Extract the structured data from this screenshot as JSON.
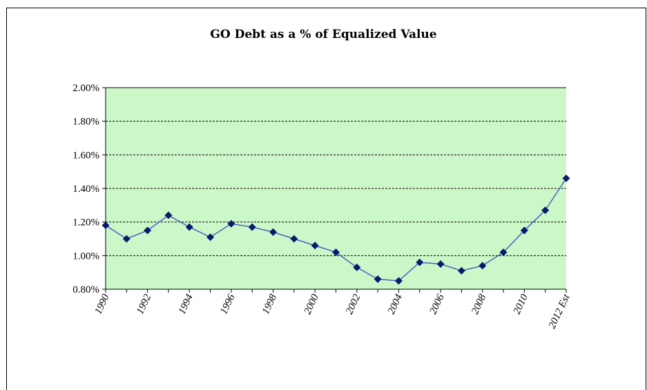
{
  "chart_data": {
    "type": "line",
    "title": "GO Debt as a % of Equalized Value",
    "xlabel": "",
    "ylabel": "",
    "categories": [
      "1990",
      "1991",
      "1992",
      "1993",
      "1994",
      "1995",
      "1996",
      "1997",
      "1998",
      "1999",
      "2000",
      "2001",
      "2002",
      "2003",
      "2004",
      "2005",
      "2006",
      "2007",
      "2008",
      "2009",
      "2010",
      "2011",
      "2012 Est"
    ],
    "x_tick_labels": [
      "1990",
      "1992",
      "1994",
      "1996",
      "1998",
      "2000",
      "2002",
      "2004",
      "2006",
      "2008",
      "2010",
      "2012 Est"
    ],
    "values": [
      1.18,
      1.1,
      1.15,
      1.24,
      1.17,
      1.11,
      1.19,
      1.17,
      1.14,
      1.1,
      1.06,
      1.02,
      0.93,
      0.86,
      0.85,
      0.96,
      0.95,
      0.91,
      0.94,
      1.02,
      1.15,
      1.27,
      1.46
    ],
    "ylim": [
      0.8,
      2.0
    ],
    "y_ticks": [
      "0.80%",
      "1.00%",
      "1.20%",
      "1.40%",
      "1.60%",
      "1.80%",
      "2.00%"
    ],
    "y_tick_values": [
      0.8,
      1.0,
      1.2,
      1.4,
      1.6,
      1.8,
      2.0
    ],
    "grid": true,
    "legend": "none",
    "colors": {
      "plot_background": "#ccf7c9",
      "line": "#4f5fc0",
      "marker": "#0a1a6b",
      "gridline": "#000000"
    }
  }
}
